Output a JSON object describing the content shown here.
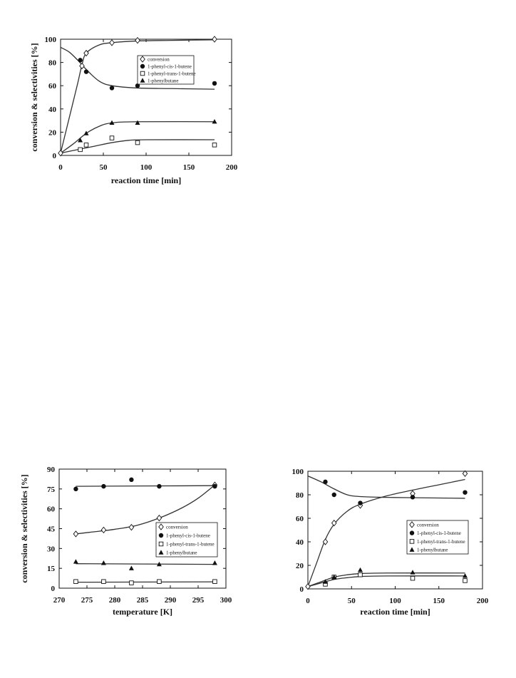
{
  "chart_data": [
    {
      "type": "scatter",
      "xlabel": "reaction time [min]",
      "ylabel": "conversion & selectivities [%]",
      "xlim": [
        0,
        200
      ],
      "ylim": [
        0,
        100
      ],
      "xticks": [
        "0",
        "50",
        "100",
        "150",
        "200"
      ],
      "yticks": [
        "0",
        "20",
        "40",
        "60",
        "80",
        "100"
      ],
      "legend": "top-right",
      "series": [
        {
          "name": "conversion",
          "marker": "diamond-open",
          "points": [
            [
              0,
              2
            ],
            [
              25,
              77
            ],
            [
              30,
              88
            ],
            [
              60,
              97
            ],
            [
              90,
              99
            ],
            [
              180,
              100
            ]
          ],
          "fit": [
            [
              0,
              2
            ],
            [
              10,
              32
            ],
            [
              20,
              62
            ],
            [
              25,
              78
            ],
            [
              30,
              88
            ],
            [
              45,
              95
            ],
            [
              60,
              97
            ],
            [
              90,
              98.5
            ],
            [
              130,
              99
            ],
            [
              180,
              99.5
            ]
          ]
        },
        {
          "name": "1-phenyl-cis-1-butene",
          "marker": "circle-filled",
          "points": [
            [
              23,
              82
            ],
            [
              30,
              72
            ],
            [
              60,
              58
            ],
            [
              90,
              60
            ],
            [
              180,
              62
            ]
          ],
          "fit": [
            [
              0,
              93
            ],
            [
              10,
              89
            ],
            [
              20,
              82
            ],
            [
              30,
              74
            ],
            [
              45,
              64
            ],
            [
              60,
              60
            ],
            [
              90,
              58
            ],
            [
              130,
              57.5
            ],
            [
              180,
              57
            ]
          ]
        },
        {
          "name": "1-phenyl-trans-1-butene",
          "marker": "square-open",
          "points": [
            [
              23,
              5
            ],
            [
              30,
              9
            ],
            [
              60,
              15
            ],
            [
              90,
              11
            ],
            [
              180,
              9
            ]
          ],
          "fit": [
            [
              0,
              2
            ],
            [
              20,
              5
            ],
            [
              40,
              8
            ],
            [
              60,
              11
            ],
            [
              80,
              13
            ],
            [
              100,
              13.5
            ],
            [
              180,
              13.5
            ]
          ]
        },
        {
          "name": "1-phenylbutane",
          "marker": "triangle-filled",
          "points": [
            [
              23,
              13
            ],
            [
              30,
              19
            ],
            [
              60,
              28
            ],
            [
              90,
              28
            ],
            [
              180,
              29
            ]
          ],
          "fit": [
            [
              0,
              2
            ],
            [
              15,
              10
            ],
            [
              30,
              19
            ],
            [
              45,
              25
            ],
            [
              60,
              28
            ],
            [
              90,
              29
            ],
            [
              180,
              29
            ]
          ]
        }
      ]
    },
    {
      "type": "scatter",
      "xlabel": "temperature [K]",
      "ylabel": "conversion & selectivities [%]",
      "xlim": [
        270,
        300
      ],
      "ylim": [
        0,
        90
      ],
      "xticks": [
        "270",
        "275",
        "280",
        "285",
        "290",
        "295",
        "300"
      ],
      "yticks": [
        "0",
        "15",
        "30",
        "45",
        "60",
        "75",
        "90"
      ],
      "legend": "bottom-right",
      "series": [
        {
          "name": "conversion",
          "marker": "diamond-open",
          "points": [
            [
              273,
              41
            ],
            [
              278,
              44
            ],
            [
              283,
              46
            ],
            [
              288,
              53
            ],
            [
              298,
              78
            ]
          ],
          "fit": [
            [
              273,
              41
            ],
            [
              276,
              42.5
            ],
            [
              280,
              44.5
            ],
            [
              284,
              47.5
            ],
            [
              288,
              53
            ],
            [
              292,
              60.5
            ],
            [
              295,
              68
            ],
            [
              298,
              78
            ]
          ]
        },
        {
          "name": "1-phenyl-cis-1-butene",
          "marker": "circle-filled",
          "points": [
            [
              273,
              75
            ],
            [
              278,
              77
            ],
            [
              283,
              82
            ],
            [
              288,
              77
            ],
            [
              298,
              77
            ]
          ],
          "fit": [
            [
              273,
              77
            ],
            [
              298,
              77.5
            ]
          ]
        },
        {
          "name": "1-phenyl-trans-1-butene",
          "marker": "square-open",
          "points": [
            [
              273,
              5
            ],
            [
              278,
              5
            ],
            [
              283,
              4
            ],
            [
              288,
              5
            ],
            [
              298,
              5
            ]
          ],
          "fit": [
            [
              273,
              4.5
            ],
            [
              298,
              4.8
            ]
          ]
        },
        {
          "name": "1-phenylbutane",
          "marker": "triangle-filled",
          "points": [
            [
              273,
              20
            ],
            [
              278,
              19
            ],
            [
              283,
              15
            ],
            [
              288,
              18
            ],
            [
              298,
              19
            ]
          ],
          "fit": [
            [
              273,
              18.5
            ],
            [
              298,
              18
            ]
          ]
        }
      ]
    },
    {
      "type": "scatter",
      "xlabel": "reaction time [min]",
      "ylabel": "",
      "xlim": [
        0,
        200
      ],
      "ylim": [
        0,
        100
      ],
      "xticks": [
        "0",
        "50",
        "100",
        "150",
        "200"
      ],
      "yticks": [
        "0",
        "20",
        "40",
        "60",
        "80",
        "100"
      ],
      "legend": "bottom-right",
      "series": [
        {
          "name": "conversion",
          "marker": "diamond-open",
          "points": [
            [
              0,
              2
            ],
            [
              20,
              40
            ],
            [
              30,
              56
            ],
            [
              60,
              71
            ],
            [
              120,
              81
            ],
            [
              180,
              98
            ]
          ],
          "fit": [
            [
              0,
              2
            ],
            [
              10,
              22
            ],
            [
              20,
              42
            ],
            [
              30,
              55
            ],
            [
              45,
              66
            ],
            [
              60,
              72
            ],
            [
              90,
              79
            ],
            [
              120,
              84
            ],
            [
              150,
              88.5
            ],
            [
              180,
              93
            ]
          ]
        },
        {
          "name": "1-phenyl-cis-1-butene",
          "marker": "circle-filled",
          "points": [
            [
              20,
              91
            ],
            [
              30,
              80
            ],
            [
              60,
              73
            ],
            [
              120,
              78
            ],
            [
              180,
              82
            ]
          ],
          "fit": [
            [
              0,
              96
            ],
            [
              15,
              91
            ],
            [
              30,
              85
            ],
            [
              45,
              80
            ],
            [
              60,
              78.5
            ],
            [
              90,
              77.8
            ],
            [
              120,
              77.5
            ],
            [
              180,
              77
            ]
          ]
        },
        {
          "name": "1-phenyl-trans-1-butene",
          "marker": "square-open",
          "points": [
            [
              20,
              4
            ],
            [
              30,
              10
            ],
            [
              60,
              12
            ],
            [
              120,
              9
            ],
            [
              180,
              7
            ]
          ],
          "fit": [
            [
              0,
              2
            ],
            [
              15,
              5
            ],
            [
              30,
              8
            ],
            [
              45,
              9.5
            ],
            [
              60,
              10.5
            ],
            [
              90,
              11
            ],
            [
              180,
              11
            ]
          ]
        },
        {
          "name": "1-phenylbutane",
          "marker": "triangle-filled",
          "points": [
            [
              20,
              6
            ],
            [
              30,
              10
            ],
            [
              60,
              16
            ],
            [
              120,
              14
            ],
            [
              180,
              11
            ]
          ],
          "fit": [
            [
              0,
              2
            ],
            [
              15,
              6
            ],
            [
              30,
              10
            ],
            [
              45,
              12
            ],
            [
              60,
              13
            ],
            [
              90,
              13.5
            ],
            [
              180,
              13.5
            ]
          ]
        }
      ]
    }
  ]
}
